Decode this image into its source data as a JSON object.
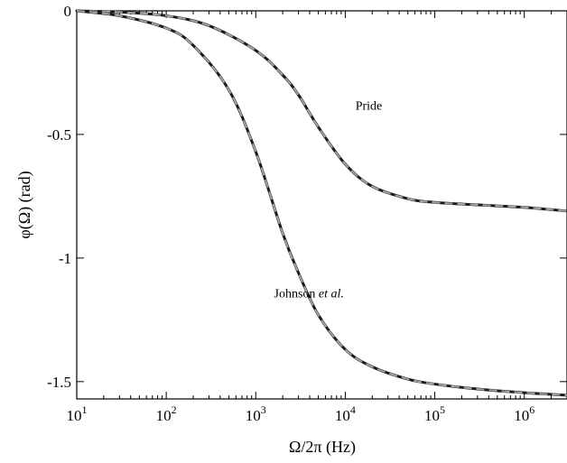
{
  "chart_data": {
    "type": "line",
    "title": "",
    "xlabel": "Ω/2π  (Hz)",
    "ylabel": "φ(Ω) (rad)",
    "xscale": "log",
    "xlim": [
      10,
      3000000
    ],
    "ylim": [
      -1.57,
      0
    ],
    "grid": false,
    "legend": "none",
    "x_ticks": [
      {
        "value": 10,
        "base": "10",
        "exp": "1"
      },
      {
        "value": 100,
        "base": "10",
        "exp": "2"
      },
      {
        "value": 1000,
        "base": "10",
        "exp": "3"
      },
      {
        "value": 10000,
        "base": "10",
        "exp": "4"
      },
      {
        "value": 100000,
        "base": "10",
        "exp": "5"
      },
      {
        "value": 1000000,
        "base": "10",
        "exp": "6"
      }
    ],
    "y_ticks": [
      {
        "value": 0,
        "label": "0"
      },
      {
        "value": -0.5,
        "label": "-0.5"
      },
      {
        "value": -1,
        "label": "-1"
      },
      {
        "value": -1.5,
        "label": "-1.5"
      }
    ],
    "series": [
      {
        "name": "Pride",
        "x": [
          10,
          30,
          100,
          300,
          1000,
          2000,
          3000,
          5000,
          10000,
          20000,
          50000,
          100000,
          300000,
          1000000,
          3000000
        ],
        "y": [
          0,
          -0.005,
          -0.02,
          -0.06,
          -0.16,
          -0.26,
          -0.34,
          -0.47,
          -0.62,
          -0.71,
          -0.76,
          -0.775,
          -0.785,
          -0.795,
          -0.81
        ]
      },
      {
        "name": "Johnson et al.",
        "x": [
          10,
          30,
          100,
          200,
          500,
          1000,
          2000,
          3000,
          5000,
          10000,
          20000,
          50000,
          100000,
          300000,
          1000000,
          3000000
        ],
        "y": [
          0,
          -0.02,
          -0.07,
          -0.14,
          -0.32,
          -0.57,
          -0.9,
          -1.06,
          -1.23,
          -1.37,
          -1.44,
          -1.49,
          -1.51,
          -1.53,
          -1.545,
          -1.555
        ]
      }
    ],
    "annotations": [
      {
        "text_plain": "Pride",
        "text_normal": "",
        "text_italic": "",
        "x": 13000,
        "y": -0.4
      },
      {
        "text_plain": "",
        "text_normal": "Johnson ",
        "text_italic": "et al.",
        "x": 1600,
        "y": -1.16
      }
    ],
    "line_colors": {
      "outer": "#1a1a1a",
      "inner": "#a6a6a6"
    }
  }
}
